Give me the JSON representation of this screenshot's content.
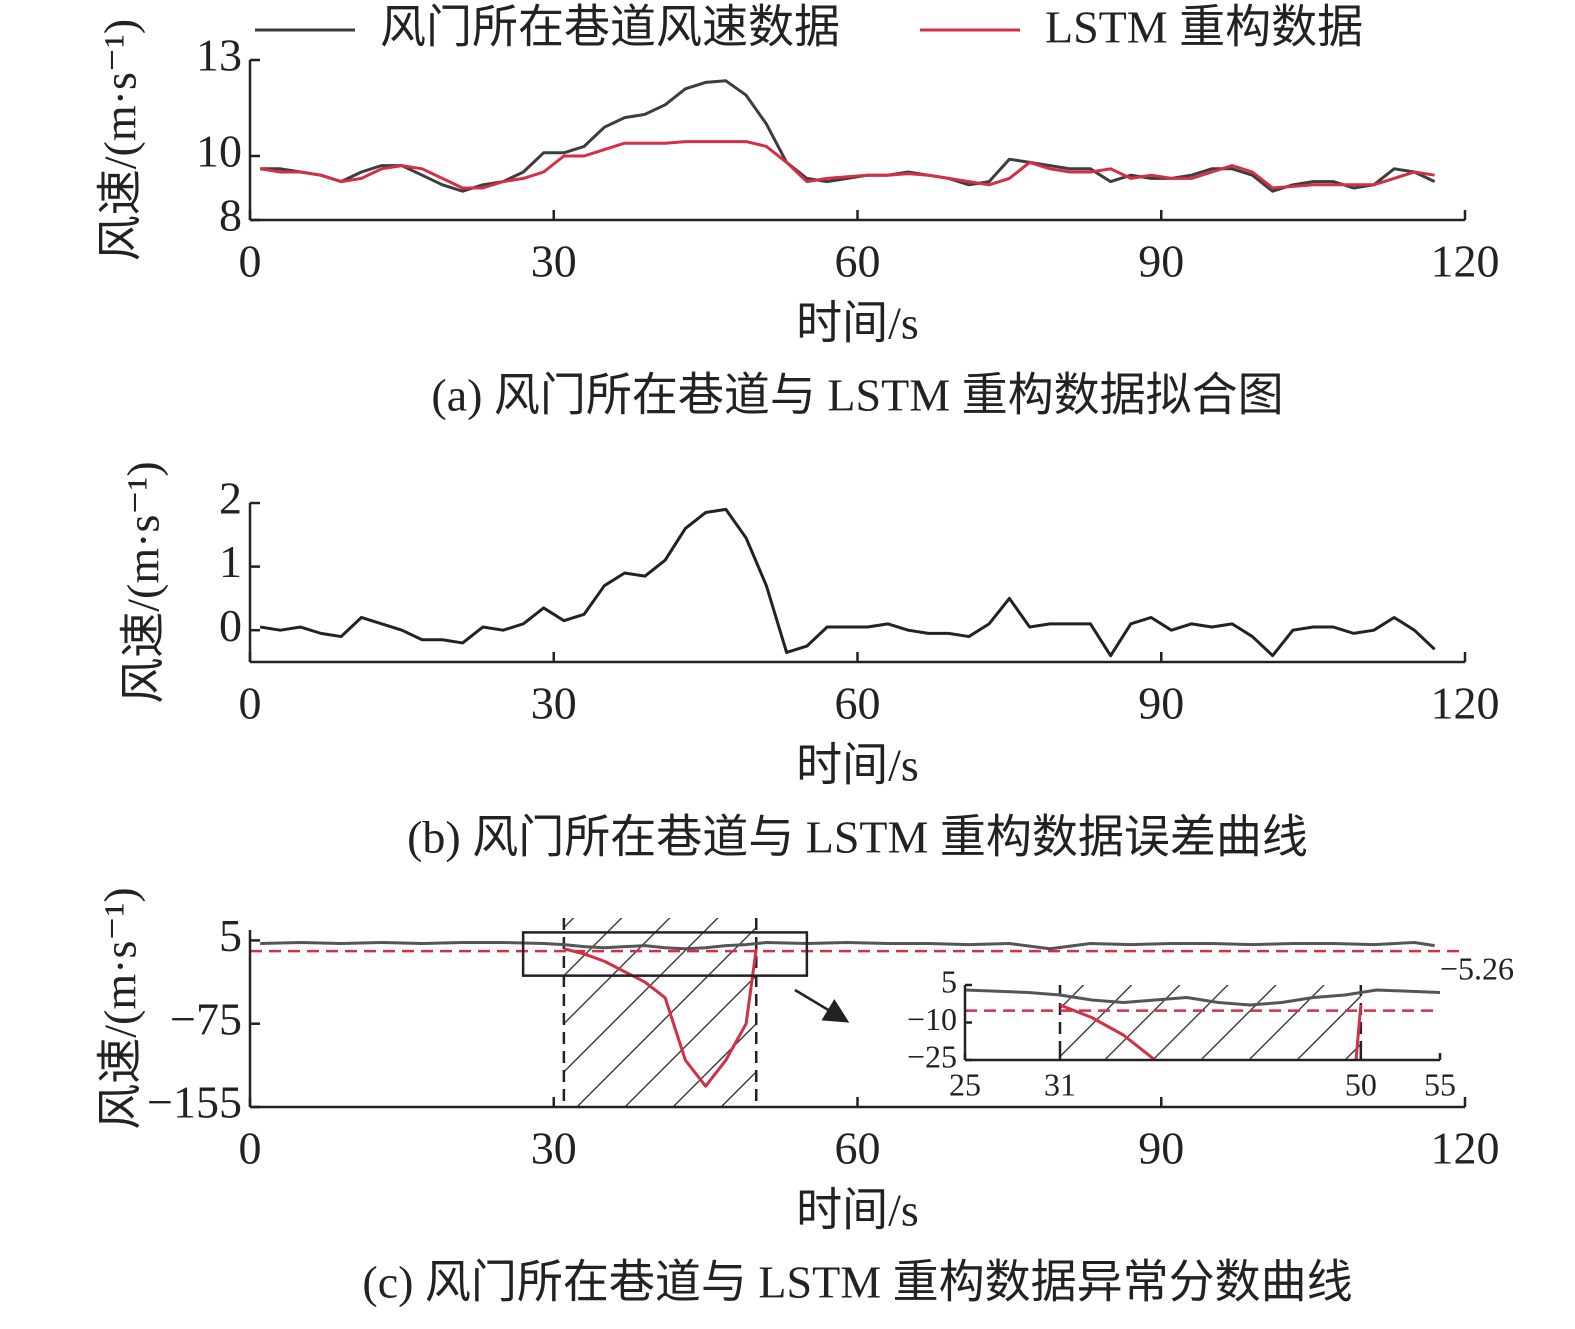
{
  "chart_data": [
    {
      "type": "line",
      "caption": "(a) 风门所在巷道与 LSTM 重构数据拟合图",
      "y_label": "风速/(m·s⁻¹)",
      "x_label": "时间/s",
      "xlim": [
        0,
        120
      ],
      "xticks": [
        0,
        30,
        60,
        90,
        120
      ],
      "ylim": [
        8,
        13
      ],
      "yticks": [
        8,
        10,
        13
      ],
      "legend": "top",
      "x": [
        1,
        3,
        5,
        7,
        9,
        11,
        13,
        15,
        17,
        19,
        21,
        23,
        25,
        27,
        29,
        31,
        33,
        35,
        37,
        39,
        41,
        43,
        45,
        47,
        49,
        51,
        53,
        55,
        57,
        59,
        61,
        63,
        65,
        67,
        69,
        71,
        73,
        75,
        77,
        79,
        81,
        83,
        85,
        87,
        89,
        91,
        93,
        95,
        97,
        99,
        101,
        103,
        105,
        107,
        109,
        111,
        113,
        115,
        117
      ],
      "series": [
        {
          "name": "风门所在巷道风速数据",
          "color": "#3d3d3d",
          "values": [
            9.6,
            9.6,
            9.5,
            9.4,
            9.2,
            9.5,
            9.7,
            9.7,
            9.4,
            9.1,
            8.9,
            9.1,
            9.2,
            9.5,
            10.1,
            10.1,
            10.3,
            10.9,
            11.2,
            11.3,
            11.6,
            12.1,
            12.3,
            12.35,
            11.9,
            11.0,
            9.8,
            9.3,
            9.2,
            9.3,
            9.4,
            9.4,
            9.5,
            9.4,
            9.3,
            9.1,
            9.2,
            9.9,
            9.8,
            9.7,
            9.6,
            9.6,
            9.2,
            9.4,
            9.3,
            9.3,
            9.4,
            9.6,
            9.6,
            9.4,
            8.9,
            9.1,
            9.2,
            9.2,
            9.0,
            9.1,
            9.6,
            9.5,
            9.2
          ]
        },
        {
          "name": "LSTM 重构数据",
          "color": "#d32f45",
          "values": [
            9.6,
            9.5,
            9.5,
            9.4,
            9.2,
            9.3,
            9.6,
            9.7,
            9.6,
            9.3,
            9.0,
            9.0,
            9.2,
            9.3,
            9.5,
            10.0,
            10.0,
            10.2,
            10.4,
            10.4,
            10.4,
            10.45,
            10.45,
            10.45,
            10.45,
            10.3,
            9.8,
            9.2,
            9.3,
            9.35,
            9.4,
            9.4,
            9.45,
            9.4,
            9.3,
            9.2,
            9.1,
            9.3,
            9.8,
            9.6,
            9.5,
            9.5,
            9.6,
            9.3,
            9.4,
            9.3,
            9.3,
            9.5,
            9.7,
            9.5,
            9.0,
            9.05,
            9.1,
            9.1,
            9.1,
            9.1,
            9.3,
            9.5,
            9.4
          ]
        }
      ]
    },
    {
      "type": "line",
      "caption": "(b) 风门所在巷道与 LSTM 重构数据误差曲线",
      "y_label": "风速/(m·s⁻¹)",
      "x_label": "时间/s",
      "xlim": [
        0,
        120
      ],
      "xticks": [
        0,
        30,
        60,
        90,
        120
      ],
      "ylim": [
        -0.5,
        2
      ],
      "yticks": [
        0,
        1,
        2
      ],
      "x": [
        1,
        3,
        5,
        7,
        9,
        11,
        13,
        15,
        17,
        19,
        21,
        23,
        25,
        27,
        29,
        31,
        33,
        35,
        37,
        39,
        41,
        43,
        45,
        47,
        49,
        51,
        53,
        55,
        57,
        59,
        61,
        63,
        65,
        67,
        69,
        71,
        73,
        75,
        77,
        79,
        81,
        83,
        85,
        87,
        89,
        91,
        93,
        95,
        97,
        99,
        101,
        103,
        105,
        107,
        109,
        111,
        113,
        115,
        117
      ],
      "series": [
        {
          "color": "#222222",
          "values": [
            0.05,
            0.0,
            0.05,
            -0.05,
            -0.1,
            0.2,
            0.1,
            0.0,
            -0.15,
            -0.15,
            -0.2,
            0.05,
            0.0,
            0.1,
            0.35,
            0.15,
            0.25,
            0.7,
            0.9,
            0.85,
            1.1,
            1.6,
            1.85,
            1.9,
            1.45,
            0.7,
            -0.35,
            -0.25,
            0.05,
            0.05,
            0.05,
            0.1,
            0.0,
            -0.05,
            -0.05,
            -0.1,
            0.1,
            0.5,
            0.05,
            0.1,
            0.1,
            0.1,
            -0.4,
            0.1,
            0.2,
            0.0,
            0.1,
            0.05,
            0.1,
            -0.1,
            -0.4,
            0.0,
            0.05,
            0.05,
            -0.05,
            0.0,
            0.2,
            0.0,
            -0.3
          ]
        }
      ]
    },
    {
      "type": "line",
      "caption": "(c) 风门所在巷道与 LSTM 重构数据异常分数曲线",
      "y_label": "风速/(m·s⁻¹)",
      "x_label": "时间/s",
      "xlim": [
        0,
        120
      ],
      "xticks": [
        0,
        30,
        60,
        90,
        120
      ],
      "ylim": [
        -155,
        15
      ],
      "yticks": [
        5,
        {
          "value": -75,
          "label": "−75"
        },
        {
          "value": -155,
          "label": "−155"
        }
      ],
      "series": [
        {
          "color": "#555555",
          "x": [
            1,
            5,
            9,
            13,
            17,
            21,
            25,
            29,
            31,
            33,
            35,
            37,
            39,
            41,
            43,
            45,
            47,
            49,
            51,
            55,
            59,
            63,
            67,
            71,
            75,
            79,
            83,
            87,
            91,
            95,
            99,
            103,
            107,
            111,
            115,
            117
          ],
          "values": [
            2,
            3,
            2,
            3,
            2,
            3,
            3,
            2,
            1,
            -1,
            -2,
            -1,
            0,
            -2,
            -3,
            -2,
            0,
            1,
            3,
            2,
            3,
            2,
            2,
            1,
            2,
            -3,
            2,
            1,
            2,
            2,
            1,
            2,
            2,
            1,
            3,
            0
          ]
        },
        {
          "color": "#d32f45",
          "x": [
            31,
            33,
            35,
            37,
            39,
            41,
            43,
            45,
            47,
            49,
            50
          ],
          "values": [
            -3,
            -8,
            -15,
            -25,
            -35,
            -50,
            -110,
            -135,
            -110,
            -75,
            -3
          ]
        }
      ],
      "threshold": {
        "value": -5.26,
        "label": "−5.26"
      },
      "regions": [
        [
          31,
          50
        ]
      ],
      "inset": {
        "xlim": [
          25,
          55
        ],
        "ylim": [
          -25,
          5
        ],
        "xticks": [
          25,
          31,
          50,
          55
        ],
        "yticks": [
          5,
          {
            "value": -10,
            "label": "−10"
          },
          {
            "value": -25,
            "label": "−25"
          }
        ]
      }
    }
  ]
}
